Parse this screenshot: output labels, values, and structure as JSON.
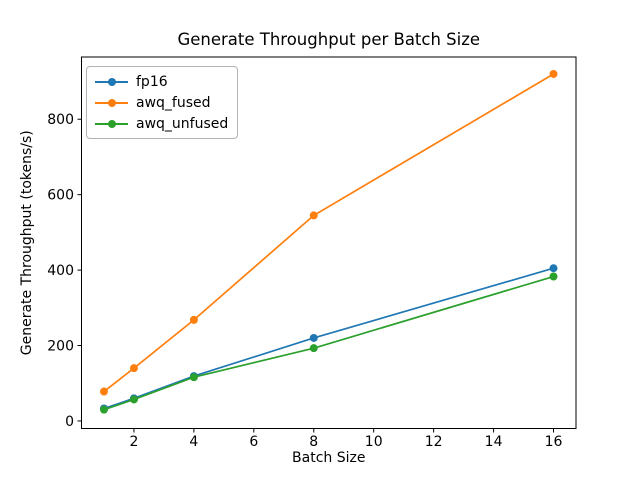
{
  "figure": {
    "background": "#ffffff"
  },
  "chart_data": {
    "type": "line",
    "title": "Generate Throughput per Batch Size",
    "xlabel": "Batch Size",
    "ylabel": "Generate Throughput (tokens/s)",
    "x": [
      1,
      2,
      4,
      8,
      16
    ],
    "series": [
      {
        "name": "fp16",
        "color": "#1f77b4",
        "marker": "circle",
        "values": [
          33,
          60,
          119,
          220,
          405
        ]
      },
      {
        "name": "awq_fused",
        "color": "#ff7f0e",
        "marker": "circle",
        "values": [
          78,
          140,
          268,
          545,
          920
        ]
      },
      {
        "name": "awq_unfused",
        "color": "#2ca02c",
        "marker": "circle",
        "values": [
          30,
          57,
          116,
          193,
          383
        ]
      }
    ],
    "xticks": [
      2,
      4,
      6,
      8,
      10,
      12,
      14,
      16
    ],
    "yticks": [
      0,
      200,
      400,
      600,
      800
    ],
    "xlim": [
      0.25,
      16.75
    ],
    "ylim": [
      -20,
      965
    ],
    "grid": false,
    "legend_position": "upper left",
    "legend_entries": [
      "fp16",
      "awq_fused",
      "awq_unfused"
    ]
  }
}
